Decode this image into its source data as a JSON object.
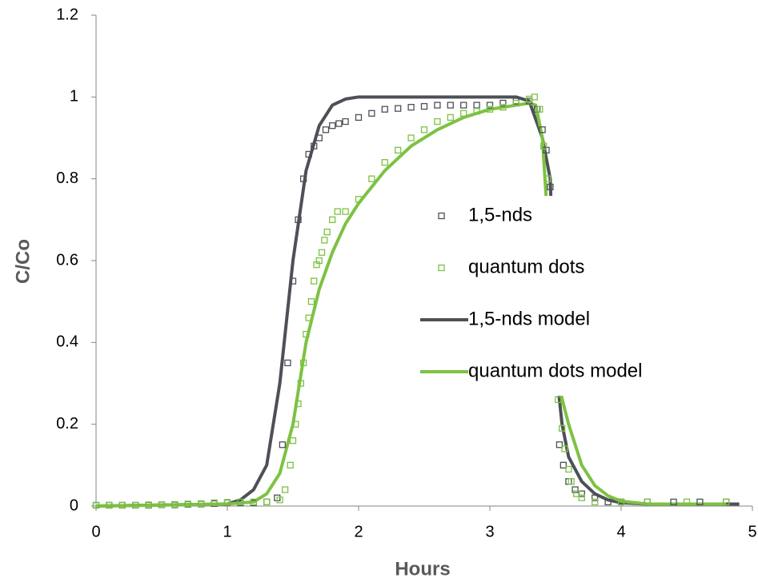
{
  "chart_data": {
    "type": "scatter-line",
    "xlabel": "Hours",
    "ylabel": "C/Co",
    "xlim": [
      0,
      5
    ],
    "xticks": [
      0,
      1,
      2,
      3,
      4,
      5
    ],
    "ylim": [
      0,
      1.2
    ],
    "yticks": [
      0,
      0.2,
      0.4,
      0.6,
      0.8,
      1,
      1.2
    ],
    "grid": false,
    "legend": "center-right",
    "series": [
      {
        "name": "1,5-nds",
        "color": "#4d5056",
        "mode": "markers",
        "x": [
          0,
          0.1,
          0.2,
          0.3,
          0.4,
          0.5,
          0.6,
          0.7,
          0.8,
          0.9,
          1.0,
          1.1,
          1.2,
          1.3,
          1.38,
          1.42,
          1.46,
          1.5,
          1.54,
          1.58,
          1.62,
          1.66,
          1.7,
          1.75,
          1.8,
          1.85,
          1.9,
          2.0,
          2.1,
          2.2,
          2.3,
          2.4,
          2.5,
          2.6,
          2.7,
          2.8,
          2.9,
          3.0,
          3.1,
          3.2,
          3.3,
          3.36,
          3.4,
          3.43,
          3.46,
          3.48,
          3.5,
          3.53,
          3.56,
          3.6,
          3.65,
          3.7,
          3.8,
          3.9,
          4.0,
          4.2,
          4.4,
          4.6,
          4.8
        ],
        "y": [
          0.002,
          0.002,
          0.002,
          0.002,
          0.002,
          0.003,
          0.003,
          0.004,
          0.005,
          0.006,
          0.008,
          0.008,
          0.008,
          0.01,
          0.02,
          0.15,
          0.35,
          0.55,
          0.7,
          0.8,
          0.86,
          0.88,
          0.9,
          0.92,
          0.93,
          0.935,
          0.94,
          0.95,
          0.96,
          0.97,
          0.972,
          0.975,
          0.977,
          0.98,
          0.98,
          0.98,
          0.98,
          0.98,
          0.985,
          0.99,
          0.99,
          0.97,
          0.92,
          0.87,
          0.78,
          0.55,
          0.3,
          0.15,
          0.1,
          0.06,
          0.04,
          0.03,
          0.02,
          0.01,
          0.01,
          0.01,
          0.01,
          0.01,
          0.01
        ]
      },
      {
        "name": "quantum dots",
        "color": "#7dc242",
        "mode": "markers",
        "x": [
          0,
          0.1,
          0.2,
          0.3,
          0.4,
          0.5,
          0.6,
          0.7,
          0.8,
          0.9,
          1.0,
          1.1,
          1.2,
          1.3,
          1.4,
          1.44,
          1.48,
          1.5,
          1.52,
          1.54,
          1.56,
          1.58,
          1.6,
          1.62,
          1.64,
          1.66,
          1.68,
          1.7,
          1.72,
          1.74,
          1.76,
          1.8,
          1.84,
          1.9,
          2.0,
          2.1,
          2.2,
          2.3,
          2.4,
          2.5,
          2.6,
          2.7,
          2.8,
          2.9,
          3.0,
          3.1,
          3.2,
          3.3,
          3.34,
          3.38,
          3.41,
          3.44,
          3.52,
          3.55,
          3.57,
          3.6,
          3.62,
          3.66,
          3.7,
          3.8,
          4.0,
          4.2,
          4.5,
          4.8
        ],
        "y": [
          0.002,
          0.002,
          0.002,
          0.002,
          0.003,
          0.003,
          0.004,
          0.005,
          0.006,
          0.008,
          0.009,
          0.01,
          0.01,
          0.01,
          0.015,
          0.04,
          0.1,
          0.16,
          0.2,
          0.25,
          0.3,
          0.35,
          0.42,
          0.46,
          0.5,
          0.55,
          0.59,
          0.6,
          0.62,
          0.65,
          0.67,
          0.7,
          0.72,
          0.72,
          0.75,
          0.8,
          0.84,
          0.87,
          0.9,
          0.92,
          0.94,
          0.95,
          0.96,
          0.965,
          0.97,
          0.975,
          0.985,
          0.995,
          1.0,
          0.97,
          0.88,
          0.8,
          0.26,
          0.19,
          0.14,
          0.09,
          0.06,
          0.03,
          0.02,
          0.01,
          0.01,
          0.01,
          0.01,
          0.01
        ]
      },
      {
        "name": "1,5-nds model",
        "color": "#4d5056",
        "mode": "line",
        "x": [
          0,
          1.0,
          1.1,
          1.2,
          1.3,
          1.4,
          1.5,
          1.6,
          1.7,
          1.8,
          1.9,
          2.0,
          3.0,
          3.2,
          3.3,
          3.4,
          3.46,
          3.48,
          3.5,
          3.55,
          3.6,
          3.7,
          3.8,
          3.9,
          4.0,
          4.2,
          4.9
        ],
        "y": [
          0,
          0.005,
          0.015,
          0.04,
          0.1,
          0.3,
          0.6,
          0.82,
          0.93,
          0.98,
          0.995,
          1.0,
          1.0,
          1.0,
          0.99,
          0.9,
          0.8,
          0.6,
          0.35,
          0.2,
          0.12,
          0.06,
          0.03,
          0.015,
          0.008,
          0.005,
          0.005
        ]
      },
      {
        "name": "quantum dots model",
        "color": "#7dc242",
        "mode": "line",
        "x": [
          0,
          1.0,
          1.2,
          1.3,
          1.4,
          1.5,
          1.6,
          1.7,
          1.8,
          1.9,
          2.0,
          2.2,
          2.4,
          2.6,
          2.8,
          3.0,
          3.2,
          3.3,
          3.35,
          3.4,
          3.52,
          3.6,
          3.7,
          3.8,
          3.9,
          4.0,
          4.2,
          4.8
        ],
        "y": [
          0,
          0.005,
          0.01,
          0.03,
          0.08,
          0.2,
          0.4,
          0.53,
          0.62,
          0.69,
          0.74,
          0.82,
          0.88,
          0.92,
          0.95,
          0.97,
          0.98,
          0.985,
          0.98,
          0.9,
          0.3,
          0.2,
          0.1,
          0.05,
          0.025,
          0.012,
          0.005,
          0.005
        ]
      }
    ]
  }
}
